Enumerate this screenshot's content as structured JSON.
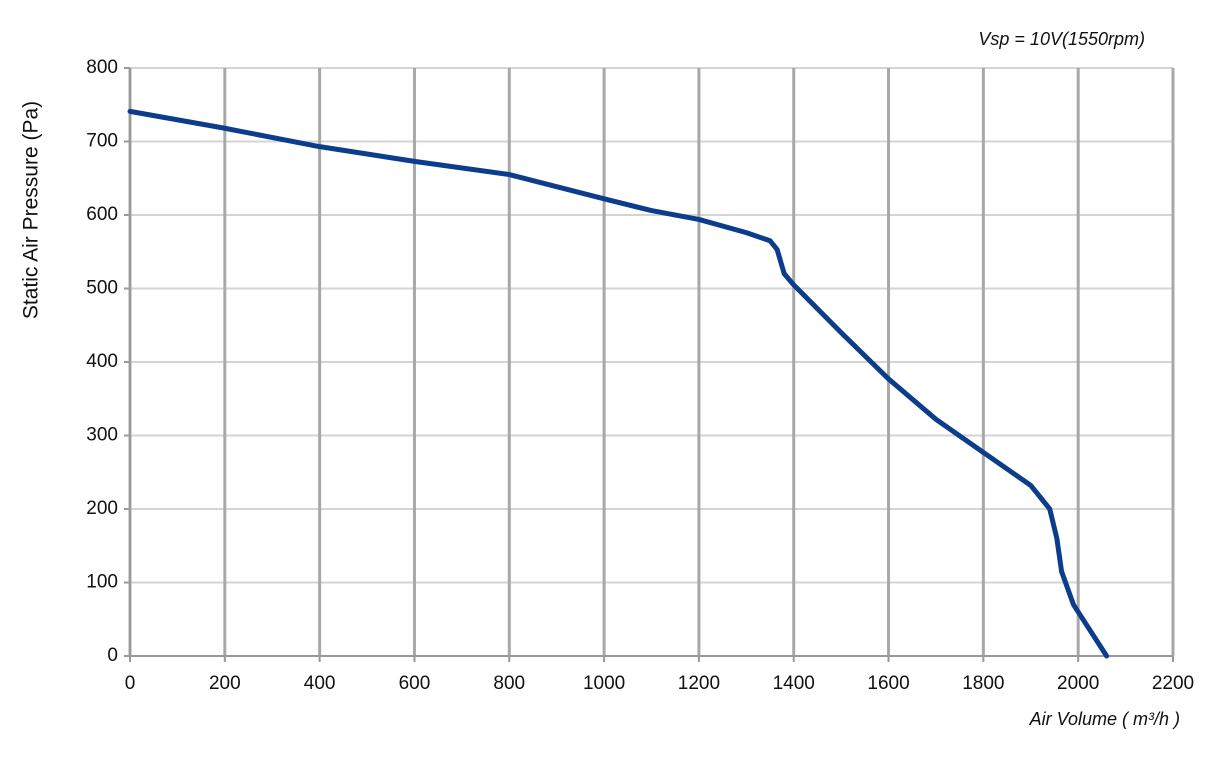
{
  "chart_data": {
    "type": "line",
    "annotation": "Vsp = 10V(1550rpm)",
    "x_label": "Air Volume ( m³/h )",
    "y_label": "Static Air Pressure  (Pa)",
    "x": [
      0,
      200,
      400,
      600,
      800,
      1000,
      1100,
      1200,
      1300,
      1350,
      1365,
      1380,
      1400,
      1500,
      1600,
      1700,
      1800,
      1900,
      1940,
      1955,
      1965,
      1990,
      2060
    ],
    "series": [
      {
        "name": "Vsp = 10V(1550rpm)",
        "color": "#0b3d8c",
        "values": [
          741,
          718,
          693,
          673,
          655,
          622,
          606,
          594,
          576,
          565,
          553,
          520,
          505,
          440,
          377,
          322,
          277,
          232,
          200,
          160,
          115,
          70,
          0
        ]
      }
    ],
    "xlim": [
      0,
      2200
    ],
    "xticks": [
      0,
      200,
      400,
      600,
      800,
      1000,
      1200,
      1400,
      1600,
      1800,
      2000,
      2200
    ],
    "ylim": [
      0,
      800
    ],
    "yticks": [
      0,
      100,
      200,
      300,
      400,
      500,
      600,
      700,
      800
    ],
    "grid": true
  }
}
